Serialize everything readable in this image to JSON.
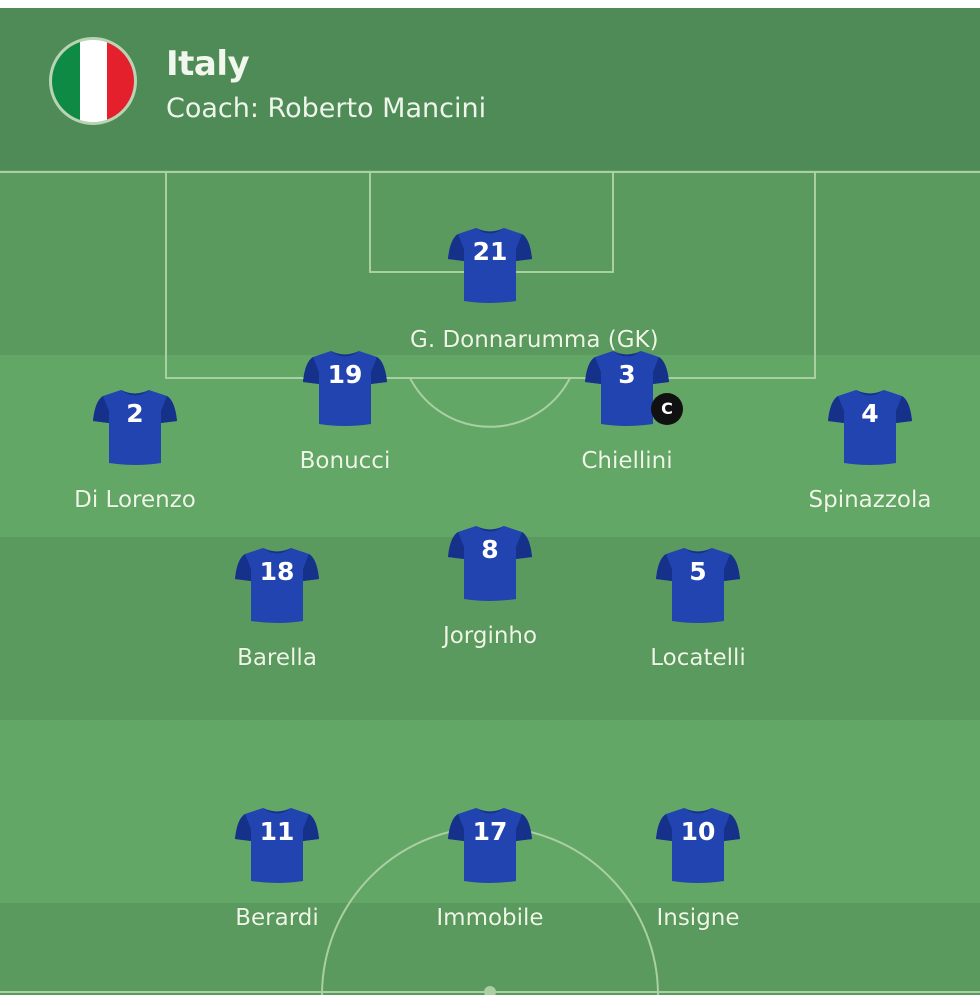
{
  "team": {
    "name": "Italy",
    "coach": "Coach: Roberto Mancini",
    "flag_icon": "italy-flag-icon",
    "flag_colors": [
      "#009246",
      "#ffffff",
      "#ce2b37"
    ]
  },
  "colors": {
    "header": "#4f8b57",
    "pitch_dark": "#5a9a5e",
    "pitch_light": "#63a767",
    "shirt": "#2144b0",
    "shirt_shadow": "#16318a"
  },
  "formation_rows": [
    "goalkeeper",
    "defenders",
    "midfielders",
    "forwards"
  ],
  "players": [
    {
      "number": "21",
      "name": "G. Donnarumma (GK)"
    },
    {
      "number": "19",
      "name": "Bonucci"
    },
    {
      "number": "3",
      "name": "Chiellini",
      "captain": "C"
    },
    {
      "number": "2",
      "name": "Di Lorenzo"
    },
    {
      "number": "4",
      "name": "Spinazzola"
    },
    {
      "number": "18",
      "name": "Barella"
    },
    {
      "number": "8",
      "name": "Jorginho"
    },
    {
      "number": "5",
      "name": "Locatelli"
    },
    {
      "number": "11",
      "name": "Berardi"
    },
    {
      "number": "17",
      "name": "Immobile"
    },
    {
      "number": "10",
      "name": "Insigne"
    }
  ]
}
